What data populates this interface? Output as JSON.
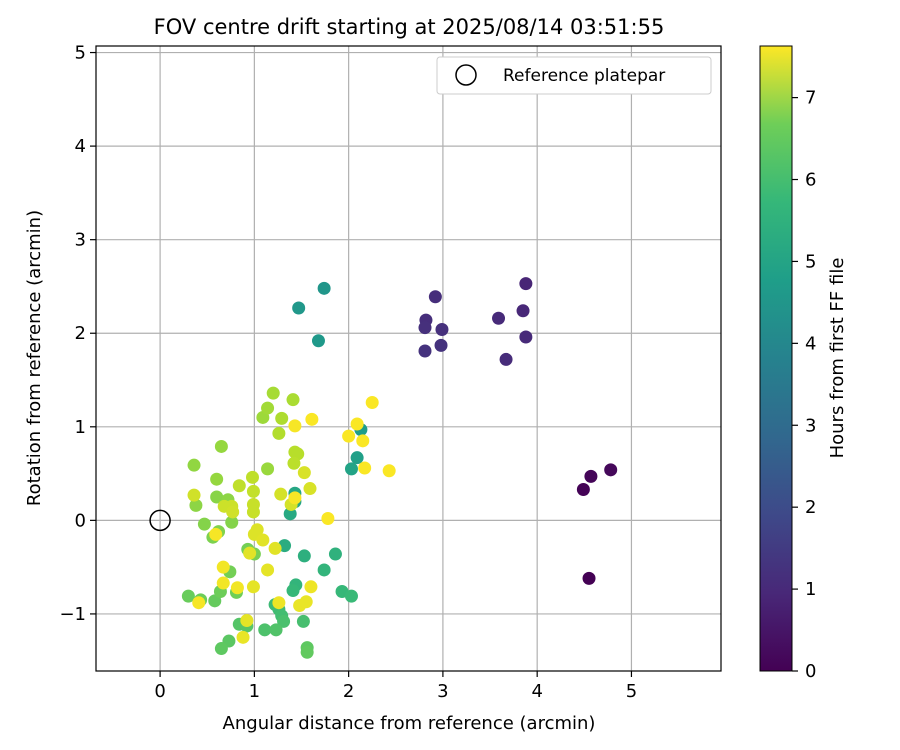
{
  "chart_data": {
    "type": "scatter",
    "title": "FOV centre drift starting at 2025/08/14 03:51:55",
    "xlabel": "Angular distance from reference (arcmin)",
    "ylabel": "Rotation from reference (arcmin)",
    "xlim": [
      -0.68,
      5.95
    ],
    "ylim": [
      -1.61,
      5.07
    ],
    "x_ticks": [
      0,
      1,
      2,
      3,
      4,
      5
    ],
    "y_ticks": [
      -1,
      0,
      1,
      2,
      3,
      4,
      5
    ],
    "grid": true,
    "legend": {
      "position": "top-right",
      "entries": [
        "Reference platepar"
      ]
    },
    "reference_point": {
      "x": 0,
      "y": 0,
      "label": "Reference platepar"
    },
    "colorbar": {
      "label": "Hours from first FF file",
      "range": [
        0,
        7.63
      ],
      "ticks": [
        0,
        1,
        2,
        3,
        4,
        5,
        6,
        7
      ],
      "colormap": "viridis"
    },
    "points": [
      {
        "x": 4.55,
        "y": -0.62,
        "h": 0.0
      },
      {
        "x": 4.49,
        "y": 0.33,
        "h": 0.05
      },
      {
        "x": 4.57,
        "y": 0.47,
        "h": 0.1
      },
      {
        "x": 4.78,
        "y": 0.54,
        "h": 0.15
      },
      {
        "x": 3.88,
        "y": 2.53,
        "h": 0.8
      },
      {
        "x": 3.85,
        "y": 2.24,
        "h": 0.85
      },
      {
        "x": 3.59,
        "y": 2.16,
        "h": 0.9
      },
      {
        "x": 3.88,
        "y": 1.96,
        "h": 0.9
      },
      {
        "x": 3.67,
        "y": 1.72,
        "h": 0.95
      },
      {
        "x": 2.92,
        "y": 2.39,
        "h": 1.0
      },
      {
        "x": 2.82,
        "y": 2.14,
        "h": 1.0
      },
      {
        "x": 2.81,
        "y": 2.06,
        "h": 1.05
      },
      {
        "x": 2.99,
        "y": 2.04,
        "h": 1.05
      },
      {
        "x": 2.98,
        "y": 1.87,
        "h": 1.1
      },
      {
        "x": 2.81,
        "y": 1.81,
        "h": 1.1
      },
      {
        "x": 1.74,
        "y": 2.48,
        "h": 4.0
      },
      {
        "x": 1.47,
        "y": 2.27,
        "h": 4.05
      },
      {
        "x": 1.68,
        "y": 1.92,
        "h": 4.1
      },
      {
        "x": 2.13,
        "y": 0.97,
        "h": 4.2
      },
      {
        "x": 2.09,
        "y": 0.67,
        "h": 4.3
      },
      {
        "x": 2.03,
        "y": 0.55,
        "h": 4.4
      },
      {
        "x": 1.43,
        "y": 0.29,
        "h": 4.5
      },
      {
        "x": 1.43,
        "y": 0.2,
        "h": 4.5
      },
      {
        "x": 1.38,
        "y": 0.07,
        "h": 4.6
      },
      {
        "x": 1.32,
        "y": -0.27,
        "h": 4.7
      },
      {
        "x": 1.53,
        "y": -0.38,
        "h": 4.8
      },
      {
        "x": 1.86,
        "y": -0.36,
        "h": 4.9
      },
      {
        "x": 1.74,
        "y": -0.53,
        "h": 5.0
      },
      {
        "x": 1.44,
        "y": -0.69,
        "h": 5.0
      },
      {
        "x": 1.41,
        "y": -0.75,
        "h": 5.1
      },
      {
        "x": 1.93,
        "y": -0.76,
        "h": 5.1
      },
      {
        "x": 2.03,
        "y": -0.81,
        "h": 5.15
      },
      {
        "x": 1.22,
        "y": -0.9,
        "h": 5.2
      },
      {
        "x": 1.26,
        "y": -0.95,
        "h": 5.25
      },
      {
        "x": 1.29,
        "y": -1.02,
        "h": 5.3
      },
      {
        "x": 1.52,
        "y": -1.08,
        "h": 5.35
      },
      {
        "x": 1.31,
        "y": -1.08,
        "h": 5.4
      },
      {
        "x": 1.11,
        "y": -1.17,
        "h": 5.45
      },
      {
        "x": 1.23,
        "y": -1.17,
        "h": 5.5
      },
      {
        "x": 0.84,
        "y": -1.11,
        "h": 5.55
      },
      {
        "x": 0.92,
        "y": -1.13,
        "h": 5.6
      },
      {
        "x": 0.73,
        "y": -1.29,
        "h": 5.65
      },
      {
        "x": 0.65,
        "y": -1.37,
        "h": 5.7
      },
      {
        "x": 1.56,
        "y": -1.36,
        "h": 5.7
      },
      {
        "x": 1.56,
        "y": -1.41,
        "h": 5.75
      },
      {
        "x": 0.58,
        "y": -0.86,
        "h": 5.8
      },
      {
        "x": 0.3,
        "y": -0.81,
        "h": 5.85
      },
      {
        "x": 0.43,
        "y": -0.85,
        "h": 5.9
      },
      {
        "x": 0.64,
        "y": -0.76,
        "h": 5.9
      },
      {
        "x": 0.81,
        "y": -0.77,
        "h": 5.95
      },
      {
        "x": 0.74,
        "y": -0.55,
        "h": 6.0
      },
      {
        "x": 0.93,
        "y": -0.31,
        "h": 6.0
      },
      {
        "x": 1.0,
        "y": -0.36,
        "h": 6.05
      },
      {
        "x": 0.56,
        "y": -0.18,
        "h": 6.1
      },
      {
        "x": 0.62,
        "y": -0.12,
        "h": 6.15
      },
      {
        "x": 0.47,
        "y": -0.04,
        "h": 6.2
      },
      {
        "x": 0.76,
        "y": -0.02,
        "h": 6.2
      },
      {
        "x": 0.6,
        "y": 0.25,
        "h": 6.25
      },
      {
        "x": 0.72,
        "y": 0.22,
        "h": 6.3
      },
      {
        "x": 0.38,
        "y": 0.16,
        "h": 6.3
      },
      {
        "x": 0.36,
        "y": 0.59,
        "h": 6.35
      },
      {
        "x": 0.6,
        "y": 0.44,
        "h": 6.4
      },
      {
        "x": 0.65,
        "y": 0.79,
        "h": 6.4
      },
      {
        "x": 1.14,
        "y": 0.55,
        "h": 6.45
      },
      {
        "x": 1.09,
        "y": 1.1,
        "h": 6.5
      },
      {
        "x": 1.14,
        "y": 1.2,
        "h": 6.55
      },
      {
        "x": 1.2,
        "y": 1.36,
        "h": 6.6
      },
      {
        "x": 1.41,
        "y": 1.29,
        "h": 6.65
      },
      {
        "x": 1.29,
        "y": 1.09,
        "h": 6.7
      },
      {
        "x": 1.26,
        "y": 0.93,
        "h": 6.75
      },
      {
        "x": 1.43,
        "y": 0.73,
        "h": 6.8
      },
      {
        "x": 1.46,
        "y": 0.71,
        "h": 6.8
      },
      {
        "x": 1.42,
        "y": 0.61,
        "h": 6.85
      },
      {
        "x": 0.98,
        "y": 0.46,
        "h": 6.9
      },
      {
        "x": 0.84,
        "y": 0.37,
        "h": 6.9
      },
      {
        "x": 0.99,
        "y": 0.31,
        "h": 6.95
      },
      {
        "x": 0.99,
        "y": 0.17,
        "h": 7.0
      },
      {
        "x": 0.99,
        "y": 0.09,
        "h": 7.0
      },
      {
        "x": 0.76,
        "y": 0.15,
        "h": 7.05
      },
      {
        "x": 0.68,
        "y": 0.15,
        "h": 7.05
      },
      {
        "x": 0.36,
        "y": 0.27,
        "h": 7.1
      },
      {
        "x": 0.77,
        "y": 0.09,
        "h": 7.1
      },
      {
        "x": 1.28,
        "y": 0.28,
        "h": 7.15
      },
      {
        "x": 1.39,
        "y": 0.17,
        "h": 7.15
      },
      {
        "x": 1.59,
        "y": 0.34,
        "h": 7.2
      },
      {
        "x": 1.53,
        "y": 0.51,
        "h": 7.2
      },
      {
        "x": 1.03,
        "y": -0.1,
        "h": 7.25
      },
      {
        "x": 1.0,
        "y": -0.15,
        "h": 7.25
      },
      {
        "x": 1.09,
        "y": -0.21,
        "h": 7.3
      },
      {
        "x": 0.95,
        "y": -0.35,
        "h": 7.3
      },
      {
        "x": 1.22,
        "y": -0.3,
        "h": 7.3
      },
      {
        "x": 1.14,
        "y": -0.53,
        "h": 7.35
      },
      {
        "x": 0.99,
        "y": -0.71,
        "h": 7.35
      },
      {
        "x": 0.92,
        "y": -1.07,
        "h": 7.35
      },
      {
        "x": 0.88,
        "y": -1.25,
        "h": 7.4
      },
      {
        "x": 1.48,
        "y": -0.91,
        "h": 7.4
      },
      {
        "x": 1.55,
        "y": -0.87,
        "h": 7.4
      },
      {
        "x": 1.6,
        "y": -0.71,
        "h": 7.45
      },
      {
        "x": 1.26,
        "y": -0.88,
        "h": 7.45
      },
      {
        "x": 0.67,
        "y": -0.67,
        "h": 7.5
      },
      {
        "x": 0.82,
        "y": -0.72,
        "h": 7.5
      },
      {
        "x": 0.67,
        "y": -0.5,
        "h": 7.5
      },
      {
        "x": 0.41,
        "y": -0.88,
        "h": 7.55
      },
      {
        "x": 0.59,
        "y": -0.15,
        "h": 7.55
      },
      {
        "x": 1.43,
        "y": 0.24,
        "h": 7.55
      },
      {
        "x": 1.43,
        "y": 1.01,
        "h": 7.55
      },
      {
        "x": 1.61,
        "y": 1.08,
        "h": 7.6
      },
      {
        "x": 1.78,
        "y": 0.02,
        "h": 7.6
      },
      {
        "x": 2.0,
        "y": 0.9,
        "h": 7.6
      },
      {
        "x": 2.09,
        "y": 1.03,
        "h": 7.6
      },
      {
        "x": 2.15,
        "y": 0.85,
        "h": 7.6
      },
      {
        "x": 2.17,
        "y": 0.56,
        "h": 7.6
      },
      {
        "x": 2.25,
        "y": 1.26,
        "h": 7.6
      },
      {
        "x": 2.43,
        "y": 0.53,
        "h": 7.6
      }
    ]
  }
}
